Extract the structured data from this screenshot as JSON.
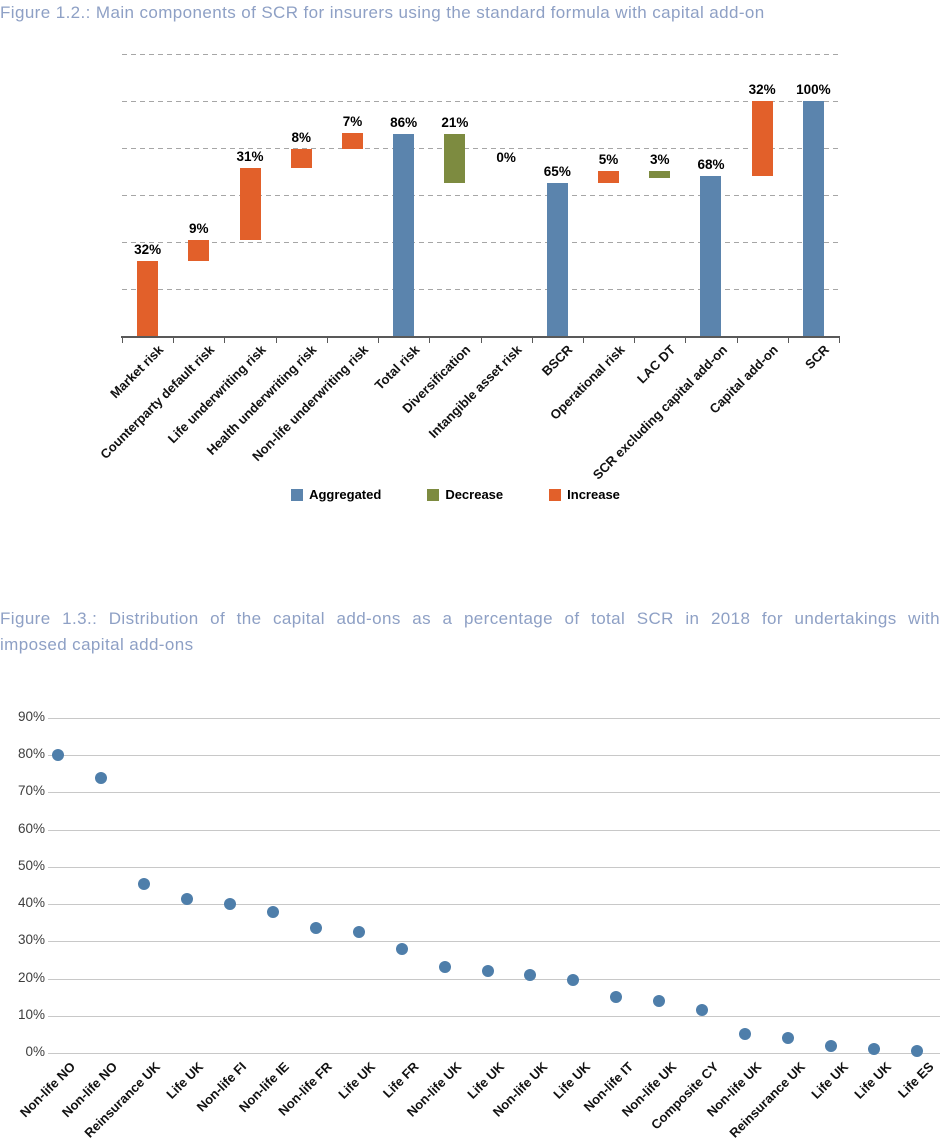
{
  "figure1": {
    "title": "Figure 1.2.: Main components of SCR for insurers using the standard formula with capital add-on",
    "legend": [
      {
        "label": "Aggregated",
        "color": "#5B84AD"
      },
      {
        "label": "Decrease",
        "color": "#7D8B40"
      },
      {
        "label": "Increase",
        "color": "#E2602A"
      }
    ],
    "chart_data": {
      "type": "bar",
      "subtype": "waterfall",
      "title": "Main components of SCR for insurers using the standard formula with capital add-on",
      "ylim": [
        0,
        120
      ],
      "gridline_step": 20,
      "grid": "dashed-horizontal",
      "legend_position": "bottom-center",
      "categories": [
        "Market risk",
        "Counterparty default risk",
        "Life underwriting risk",
        "Health underwriting risk",
        "Non-life underwriting risk",
        "Total risk",
        "Diversification",
        "Intangible asset risk",
        "BSCR",
        "Operational risk",
        "LAC DT",
        "SCR excluding capital add-on",
        "Capital add-on",
        "SCR"
      ],
      "bars": [
        {
          "label": "32%",
          "kind": "increase",
          "from": 0,
          "to": 32
        },
        {
          "label": "9%",
          "kind": "increase",
          "from": 32,
          "to": 41
        },
        {
          "label": "31%",
          "kind": "increase",
          "from": 41,
          "to": 71.5
        },
        {
          "label": "8%",
          "kind": "increase",
          "from": 71.5,
          "to": 79.5
        },
        {
          "label": "7%",
          "kind": "increase",
          "from": 79.5,
          "to": 86.5
        },
        {
          "label": "86%",
          "kind": "aggregated",
          "from": 0,
          "to": 86
        },
        {
          "label": "21%",
          "kind": "decrease",
          "from": 65,
          "to": 86
        },
        {
          "label": "0%",
          "kind": "increase",
          "from": 65,
          "to": 65
        },
        {
          "label": "65%",
          "kind": "aggregated",
          "from": 0,
          "to": 65
        },
        {
          "label": "5%",
          "kind": "increase",
          "from": 65,
          "to": 70.5
        },
        {
          "label": "3%",
          "kind": "decrease",
          "from": 67.5,
          "to": 70.5
        },
        {
          "label": "68%",
          "kind": "aggregated",
          "from": 0,
          "to": 68
        },
        {
          "label": "32%",
          "kind": "increase",
          "from": 68,
          "to": 100
        },
        {
          "label": "100%",
          "kind": "aggregated",
          "from": 0,
          "to": 100
        }
      ]
    }
  },
  "figure2": {
    "title_lines": [
      "Figure 1.3.: Distribution of the capital add-ons as a percentage of total SCR in 2018 for undertakings with",
      "imposed capital add-ons"
    ],
    "chart_data": {
      "type": "scatter",
      "title": "Distribution of the capital add-ons as a percentage of total SCR in 2018 for undertakings with imposed capital add-ons",
      "ylim": [
        0,
        90
      ],
      "yticks": [
        "90%",
        "80%",
        "70%",
        "60%",
        "50%",
        "40%",
        "30%",
        "20%",
        "10%",
        "0%"
      ],
      "grid": "solid-horizontal",
      "point_color": "#4E7EAA",
      "categories": [
        "Non-life NO",
        "Non-life NO",
        "Reinsurance UK",
        "Life UK",
        "Non-life FI",
        "Non-life IE",
        "Non-life FR",
        "Life UK",
        "Life FR",
        "Non-life UK",
        "Life UK",
        "Non-life UK",
        "Life UK",
        "Non-life IT",
        "Non-life UK",
        "Composite CY",
        "Non-life UK",
        "Reinsurance UK",
        "Life UK",
        "Life UK",
        "Life ES"
      ],
      "values": [
        80,
        74,
        45.5,
        41.5,
        40,
        38,
        33.5,
        32.5,
        28,
        23,
        22,
        21,
        19.5,
        15,
        14,
        11.5,
        5,
        4,
        2,
        1,
        0.5
      ]
    }
  }
}
